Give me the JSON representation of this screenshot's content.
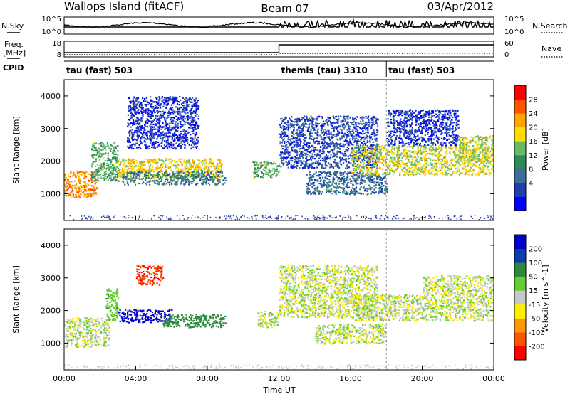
{
  "header": {
    "left": "Wallops Island (fitACF)",
    "center": "Beam 07",
    "right": "03/Apr/2012"
  },
  "strips": {
    "nsky_label": "N.Sky",
    "nsky_ticks": [
      "10^5",
      "10^0"
    ],
    "nsearch_label": "N.Search",
    "nsearch_ticks": [
      "10^5",
      "10^0"
    ],
    "freq_label_1": "Freq.",
    "freq_label_2": "[MHz]",
    "freq_ticks": [
      "18",
      "8"
    ],
    "nave_label": "Nave",
    "nave_ticks": [
      "60",
      "0"
    ],
    "cpid_label": "CPID"
  },
  "cpid_segments": [
    {
      "label": "tau (fast) 503",
      "start_hour": 0
    },
    {
      "label": "themis (tau) 3310",
      "start_hour": 12
    },
    {
      "label": "tau (fast) 503",
      "start_hour": 18
    }
  ],
  "axes": {
    "xlabel": "Time UT",
    "x_ticks": [
      "00:00",
      "04:00",
      "08:00",
      "12:00",
      "16:00",
      "20:00",
      "00:00"
    ],
    "xlim_hours": [
      0,
      24
    ],
    "ylabel": "Slant Range [km]",
    "y_ticks": [
      1000,
      2000,
      3000,
      4000
    ],
    "ylim_km": [
      180,
      4500
    ]
  },
  "colors": {
    "power_scale": [
      "#0000ff",
      "#1f3fb0",
      "#3b6e9a",
      "#2e8b57",
      "#66bb66",
      "#ffdd00",
      "#ffa500",
      "#ff5500",
      "#ff0000"
    ],
    "velocity_scale": [
      "#0000cc",
      "#0f3da8",
      "#2b8a3e",
      "#66cc33",
      "#c8c8c8",
      "#ffee00",
      "#ff9900",
      "#ff5500",
      "#ff0000"
    ]
  },
  "chart_data": [
    {
      "type": "heatmap",
      "panel": "power",
      "colorbar_label": "Power [dB]",
      "colorbar_ticks": [
        "28",
        "24",
        "20",
        "16",
        "12",
        "8",
        "4"
      ],
      "grid": false,
      "regions": [
        {
          "t0": 0.0,
          "t1": 1.8,
          "r0": 900,
          "r1": 1700,
          "level": 24
        },
        {
          "t0": 1.5,
          "t1": 3.0,
          "r0": 1400,
          "r1": 2600,
          "level": 14
        },
        {
          "t0": 3.0,
          "t1": 8.8,
          "r0": 1500,
          "r1": 2100,
          "level": 20
        },
        {
          "t0": 3.2,
          "t1": 9.0,
          "r0": 1300,
          "r1": 1700,
          "level": 10
        },
        {
          "t0": 3.5,
          "t1": 7.5,
          "r0": 2400,
          "r1": 4000,
          "level": 4
        },
        {
          "t0": 10.5,
          "t1": 12.0,
          "r0": 1500,
          "r1": 2000,
          "level": 14
        },
        {
          "t0": 12.0,
          "t1": 17.5,
          "r0": 1800,
          "r1": 3400,
          "level": 6
        },
        {
          "t0": 13.5,
          "t1": 18.0,
          "r0": 1000,
          "r1": 1700,
          "level": 8
        },
        {
          "t0": 16.0,
          "t1": 24.0,
          "r0": 1600,
          "r1": 2500,
          "level": 18
        },
        {
          "t0": 18.0,
          "t1": 22.0,
          "r0": 2500,
          "r1": 3600,
          "level": 4
        },
        {
          "t0": 22.0,
          "t1": 24.0,
          "r0": 2000,
          "r1": 2800,
          "level": 18
        }
      ]
    },
    {
      "type": "heatmap",
      "panel": "velocity",
      "colorbar_label": "Velocity [m s^-1]",
      "colorbar_ticks": [
        "200",
        "100",
        "50",
        "15",
        "-15",
        "-50",
        "-100",
        "-200"
      ],
      "grid": false,
      "regions": [
        {
          "t0": 0.0,
          "t1": 2.5,
          "r0": 900,
          "r1": 1800,
          "level": 0
        },
        {
          "t0": 2.3,
          "t1": 3.0,
          "r0": 1700,
          "r1": 2700,
          "level": 20
        },
        {
          "t0": 3.0,
          "t1": 6.0,
          "r0": 1650,
          "r1": 2050,
          "level": 200
        },
        {
          "t0": 5.5,
          "t1": 9.0,
          "r0": 1500,
          "r1": 1900,
          "level": 60
        },
        {
          "t0": 4.0,
          "t1": 5.5,
          "r0": 2800,
          "r1": 3400,
          "level": -150
        },
        {
          "t0": 10.8,
          "t1": 12.0,
          "r0": 1500,
          "r1": 2000,
          "level": 0
        },
        {
          "t0": 12.0,
          "t1": 17.5,
          "r0": 1800,
          "r1": 3400,
          "level": 0
        },
        {
          "t0": 14.0,
          "t1": 18.0,
          "r0": 1000,
          "r1": 1600,
          "level": 0
        },
        {
          "t0": 16.0,
          "t1": 24.0,
          "r0": 1700,
          "r1": 2500,
          "level": 0
        },
        {
          "t0": 20.0,
          "t1": 24.0,
          "r0": 2500,
          "r1": 3100,
          "level": 0
        }
      ]
    }
  ]
}
